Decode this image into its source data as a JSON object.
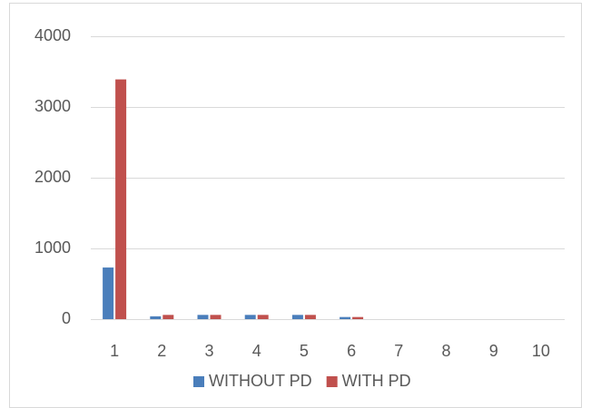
{
  "chart_data": {
    "type": "bar",
    "categories": [
      "1",
      "2",
      "3",
      "4",
      "5",
      "6",
      "7",
      "8",
      "9",
      "10"
    ],
    "series": [
      {
        "name": "WITHOUT PD",
        "color": "#4a7ebb",
        "values": [
          730,
          40,
          60,
          60,
          60,
          30,
          0,
          0,
          0,
          0
        ]
      },
      {
        "name": "WITH PD",
        "color": "#c0504d",
        "values": [
          3390,
          60,
          60,
          60,
          60,
          30,
          0,
          0,
          0,
          0
        ]
      }
    ],
    "ylim": [
      0,
      4000
    ],
    "yticks": [
      0,
      1000,
      2000,
      3000,
      4000
    ],
    "grid": true,
    "legend": "bottom"
  }
}
